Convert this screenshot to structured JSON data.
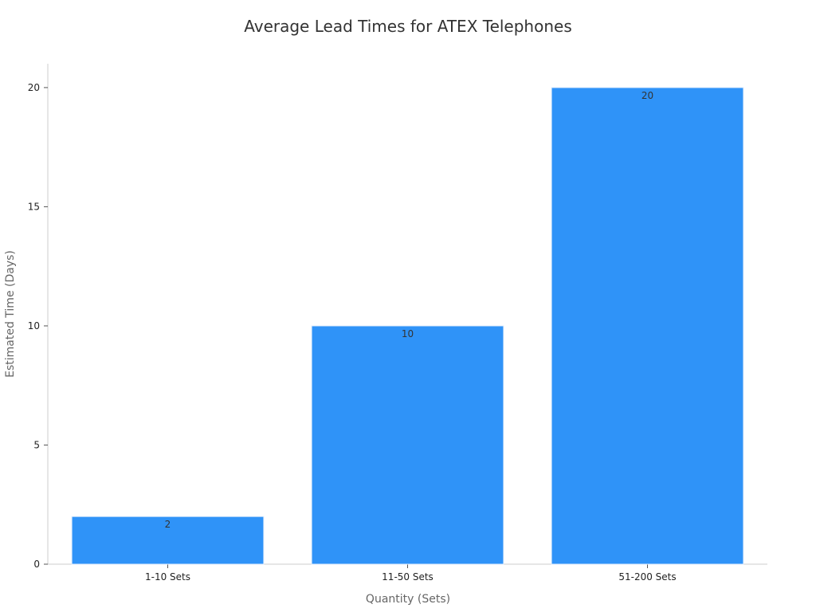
{
  "chart_data": {
    "type": "bar",
    "title": "Average Lead Times for ATEX Telephones",
    "xlabel": "Quantity (Sets)",
    "ylabel": "Estimated Time (Days)",
    "categories": [
      "1-10 Sets",
      "11-50 Sets",
      "51-200 Sets"
    ],
    "values": [
      2,
      10,
      20
    ],
    "data_labels": [
      "2",
      "10",
      "20"
    ],
    "ylim": [
      0,
      21
    ],
    "yticks": [
      0,
      5,
      10,
      15,
      20
    ],
    "bar_color": "#2f93f8",
    "bar_edge_color": "#e3eefc",
    "grid": false,
    "legend": "none"
  }
}
